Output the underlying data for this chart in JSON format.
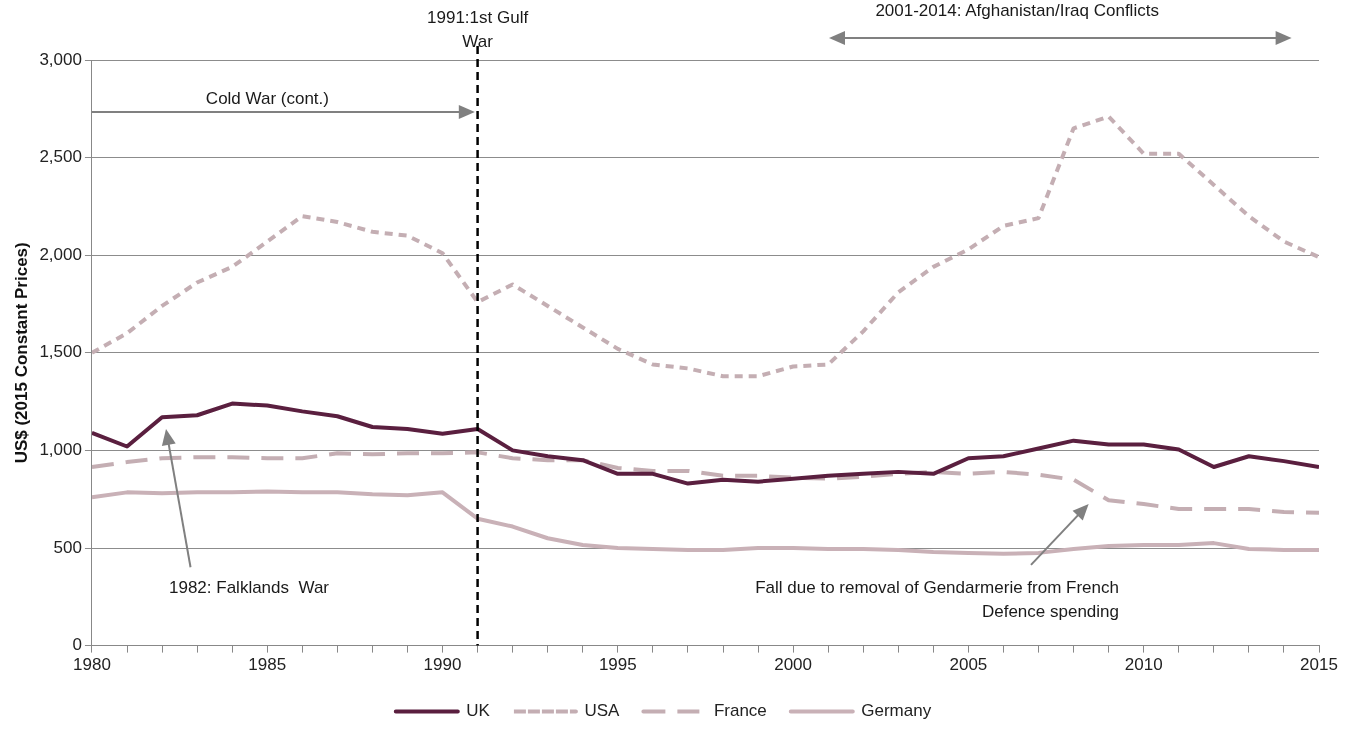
{
  "chart_data": {
    "type": "line",
    "ylabel": "US$ (2015 Constant Prices)",
    "x": [
      1980,
      1981,
      1982,
      1983,
      1984,
      1985,
      1986,
      1987,
      1988,
      1989,
      1990,
      1991,
      1992,
      1993,
      1994,
      1995,
      1996,
      1997,
      1998,
      1999,
      2000,
      2001,
      2002,
      2003,
      2004,
      2005,
      2006,
      2007,
      2008,
      2009,
      2010,
      2011,
      2012,
      2013,
      2014,
      2015
    ],
    "series": [
      {
        "name": "UK",
        "color": "#5a1f3f",
        "line_style": "solid",
        "values": [
          1090,
          1020,
          1170,
          1180,
          1240,
          1230,
          1200,
          1175,
          1120,
          1110,
          1085,
          1110,
          1000,
          970,
          950,
          880,
          880,
          830,
          850,
          840,
          855,
          870,
          880,
          890,
          880,
          960,
          970,
          1010,
          1050,
          1030,
          1030,
          1005,
          915,
          970,
          945,
          915
        ]
      },
      {
        "name": "USA",
        "color": "#c4aeb3",
        "line_style": "dotted",
        "values": [
          1500,
          1600,
          1740,
          1860,
          1940,
          2070,
          2200,
          2170,
          2120,
          2100,
          2010,
          1760,
          1850,
          1740,
          1630,
          1520,
          1440,
          1420,
          1380,
          1380,
          1430,
          1440,
          1610,
          1810,
          1940,
          2030,
          2150,
          2190,
          2650,
          2710,
          2520,
          2520,
          2360,
          2200,
          2070,
          1990
        ]
      },
      {
        "name": "France",
        "color": "#c4aeb3",
        "line_style": "dashed",
        "values": [
          915,
          940,
          960,
          965,
          965,
          960,
          960,
          985,
          980,
          985,
          985,
          990,
          960,
          950,
          950,
          910,
          895,
          895,
          870,
          870,
          860,
          855,
          865,
          880,
          890,
          880,
          890,
          875,
          850,
          745,
          725,
          700,
          700,
          700,
          685,
          680
        ]
      },
      {
        "name": "Germany",
        "color": "#c9b1b7",
        "line_style": "solid",
        "values": [
          760,
          785,
          780,
          785,
          785,
          790,
          785,
          785,
          775,
          770,
          785,
          650,
          610,
          550,
          515,
          500,
          495,
          490,
          490,
          500,
          500,
          495,
          495,
          490,
          480,
          475,
          470,
          475,
          495,
          510,
          515,
          515,
          525,
          495,
          490,
          490
        ]
      }
    ],
    "xlim": [
      1980,
      2015
    ],
    "xticks": [
      1980,
      {
        "value": 1981,
        "label": null
      },
      {
        "value": 1982,
        "label": null
      },
      {
        "value": 1983,
        "label": null
      },
      {
        "value": 1984,
        "label": null
      },
      1985,
      {
        "value": 1986,
        "label": null
      },
      {
        "value": 1987,
        "label": null
      },
      {
        "value": 1988,
        "label": null
      },
      {
        "value": 1989,
        "label": null
      },
      1990,
      {
        "value": 1991,
        "label": null
      },
      {
        "value": 1992,
        "label": null
      },
      {
        "value": 1993,
        "label": null
      },
      {
        "value": 1994,
        "label": null
      },
      1995,
      {
        "value": 1996,
        "label": null
      },
      {
        "value": 1997,
        "label": null
      },
      {
        "value": 1998,
        "label": null
      },
      {
        "value": 1999,
        "label": null
      },
      2000,
      {
        "value": 2001,
        "label": null
      },
      {
        "value": 2002,
        "label": null
      },
      {
        "value": 2003,
        "label": null
      },
      {
        "value": 2004,
        "label": null
      },
      2005,
      {
        "value": 2006,
        "label": null
      },
      {
        "value": 2007,
        "label": null
      },
      {
        "value": 2008,
        "label": null
      },
      {
        "value": 2009,
        "label": null
      },
      2010,
      {
        "value": 2011,
        "label": null
      },
      {
        "value": 2012,
        "label": null
      },
      {
        "value": 2013,
        "label": null
      },
      {
        "value": 2014,
        "label": null
      },
      2015
    ],
    "ylim": [
      0,
      3000
    ],
    "yticks": [
      0,
      {
        "value": 500,
        "label": "500"
      },
      {
        "value": 1000,
        "label": "1,000"
      },
      {
        "value": 1500,
        "label": "1,500"
      },
      {
        "value": 2000,
        "label": "2,000"
      },
      {
        "value": 2500,
        "label": "2,500"
      },
      {
        "value": 3000,
        "label": "3,000"
      }
    ],
    "grid": "y",
    "legend": "bottom",
    "marker": "none",
    "ref_lines": [
      {
        "axis": "x",
        "value": 1991,
        "label": "1991:1st Gulf War",
        "color": "#000000",
        "line_style": "dashed"
      }
    ],
    "annotations": [
      "Cold War (cont.)",
      "2001-2014: Afghanistan/Iraq Conflicts",
      "1982: Falklands  War",
      "Fall due to removal of Gendarmerie from French Defence spending"
    ]
  }
}
